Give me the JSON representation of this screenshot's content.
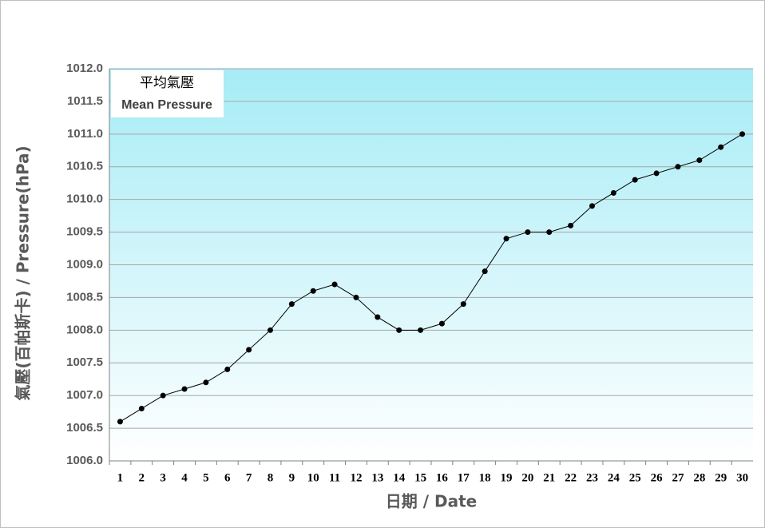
{
  "chart_data": {
    "type": "line",
    "title": "平均氣壓",
    "subtitle": "Mean Pressure",
    "x_label": "日期 / Date",
    "y_label": "氣壓(百帕斯卡) / Pressure(hPa)",
    "categories": [
      "1",
      "2",
      "3",
      "4",
      "5",
      "6",
      "7",
      "8",
      "9",
      "10",
      "11",
      "12",
      "13",
      "14",
      "15",
      "16",
      "17",
      "18",
      "19",
      "20",
      "21",
      "22",
      "23",
      "24",
      "25",
      "26",
      "27",
      "28",
      "29",
      "30"
    ],
    "values": [
      1006.6,
      1006.8,
      1007.0,
      1007.1,
      1007.2,
      1007.4,
      1007.7,
      1008.0,
      1008.4,
      1008.6,
      1008.7,
      1008.5,
      1008.2,
      1008.0,
      1008.0,
      1008.1,
      1008.4,
      1008.9,
      1009.4,
      1009.5,
      1009.5,
      1009.6,
      1009.9,
      1010.1,
      1010.3,
      1010.4,
      1010.5,
      1010.6,
      1010.8,
      1011.0
    ],
    "color": "#000000",
    "ylim": [
      1006,
      1012
    ],
    "yticks": [
      {
        "value": 1006,
        "label": "1006.0"
      },
      {
        "value": 1006.5,
        "label": "1006.5"
      },
      {
        "value": 1007,
        "label": "1007.0"
      },
      {
        "value": 1007.5,
        "label": "1007.5"
      },
      {
        "value": 1008,
        "label": "1008.0"
      },
      {
        "value": 1008.5,
        "label": "1008.5"
      },
      {
        "value": 1009,
        "label": "1009.0"
      },
      {
        "value": 1009.5,
        "label": "1009.5"
      },
      {
        "value": 1010,
        "label": "1010.0"
      },
      {
        "value": 1010.5,
        "label": "1010.5"
      },
      {
        "value": 1011,
        "label": "1011.0"
      },
      {
        "value": 1011.5,
        "label": "1011.5"
      },
      {
        "value": 1012,
        "label": "1012.0"
      }
    ],
    "grid": true
  }
}
